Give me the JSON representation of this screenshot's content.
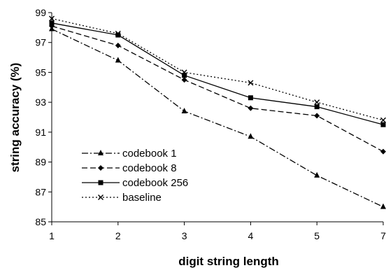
{
  "chart_data": {
    "type": "line",
    "title": "",
    "xlabel": "digit string length",
    "ylabel": "string accuracy (%)",
    "categories": [
      "1",
      "2",
      "3",
      "4",
      "5",
      "7"
    ],
    "ylim": [
      85,
      99
    ],
    "yticks": [
      "85",
      "87",
      "89",
      "91",
      "93",
      "95",
      "97",
      "99"
    ],
    "grid": false,
    "legend_position": "lower-left",
    "series": [
      {
        "name": "codebook 1",
        "marker": "triangle",
        "dash": "dash-dot",
        "values": [
          97.9,
          95.8,
          92.4,
          90.7,
          88.1,
          86.0
        ]
      },
      {
        "name": "codebook 8",
        "marker": "diamond",
        "dash": "dash",
        "values": [
          98.1,
          96.8,
          94.5,
          92.6,
          92.1,
          89.7
        ]
      },
      {
        "name": "codebook 256",
        "marker": "square",
        "dash": "solid",
        "values": [
          98.3,
          97.5,
          94.8,
          93.3,
          92.7,
          91.5
        ]
      },
      {
        "name": "baseline",
        "marker": "x",
        "dash": "dot",
        "values": [
          98.6,
          97.6,
          95.0,
          94.3,
          93.0,
          91.8
        ]
      }
    ]
  }
}
